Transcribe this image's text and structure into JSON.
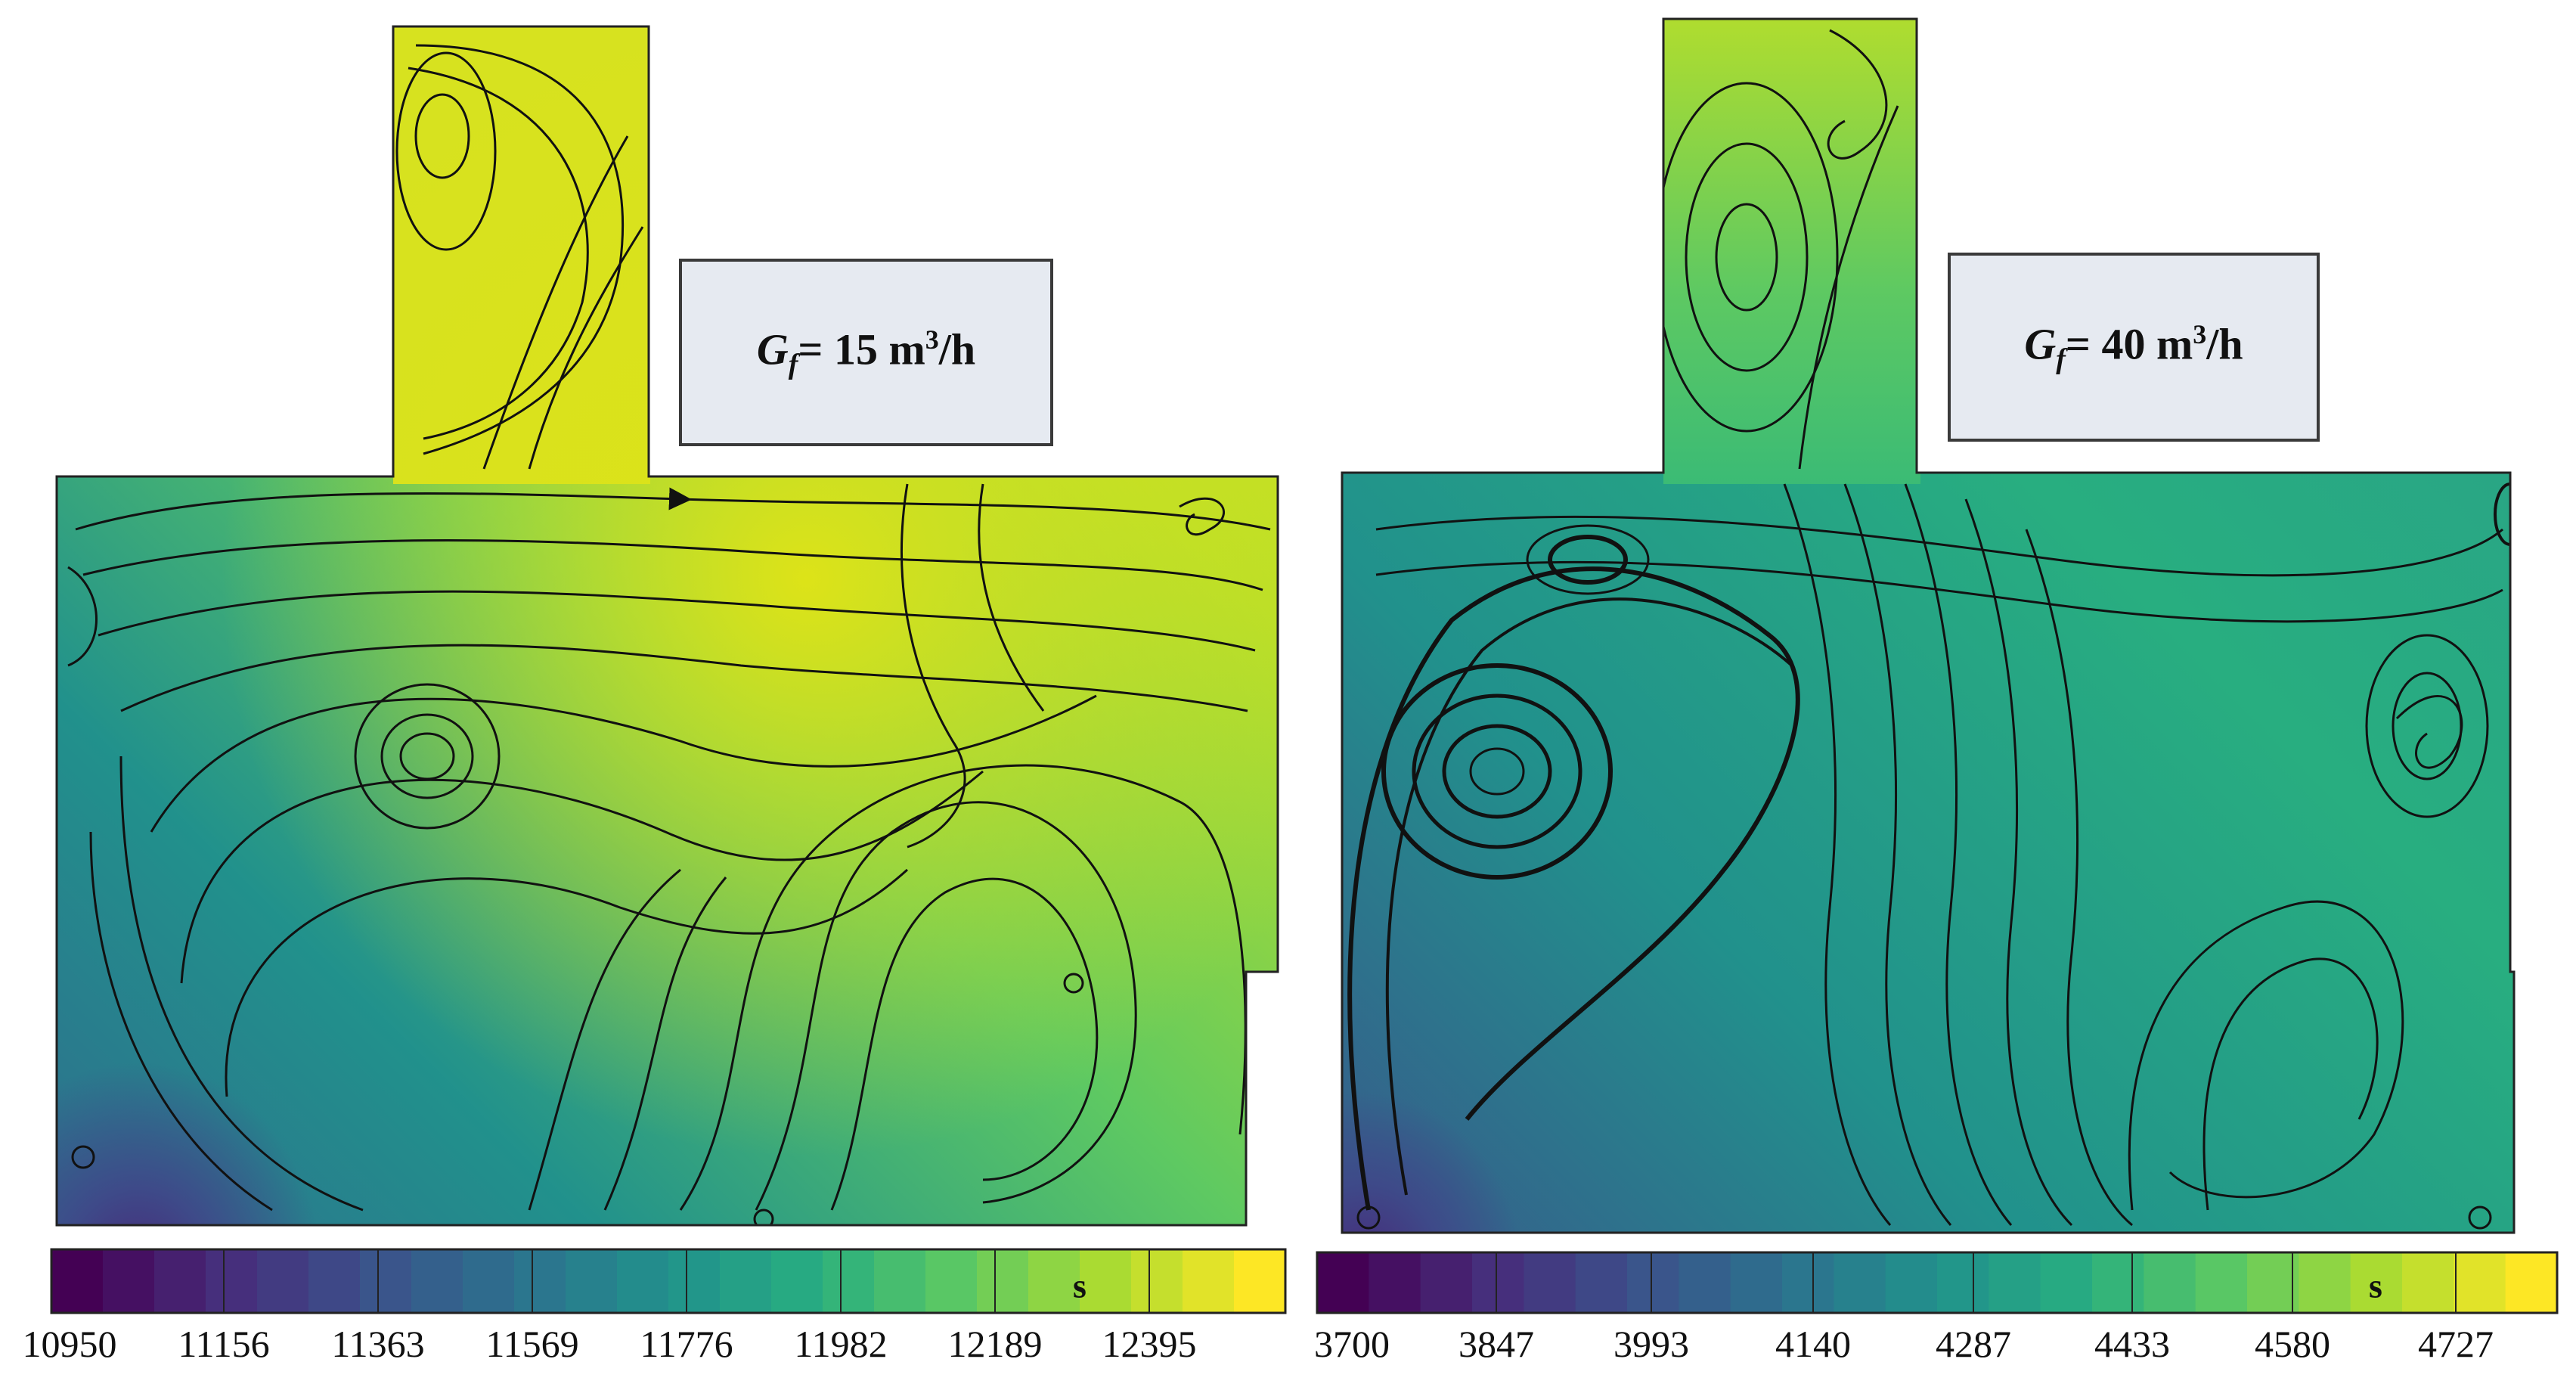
{
  "panels": [
    {
      "caption": {
        "symbol": "G",
        "subscript": "f",
        "value": "= 15 m",
        "power": "3",
        "per": "/h"
      },
      "colorbar": {
        "unit": "s",
        "ticks": [
          "10950",
          "11156",
          "11363",
          "11569",
          "11776",
          "11982",
          "12189",
          "12395"
        ],
        "colors": [
          "#440154",
          "#472d7b",
          "#3b528b",
          "#2c728e",
          "#21918c",
          "#28ae80",
          "#5ec962",
          "#addc30",
          "#fde725"
        ]
      }
    },
    {
      "caption": {
        "symbol": "G",
        "subscript": "f",
        "value": "= 40 m",
        "power": "3",
        "per": "/h"
      },
      "colorbar": {
        "unit": "s",
        "ticks": [
          "3700",
          "3847",
          "3993",
          "4140",
          "4287",
          "4433",
          "4580",
          "4727"
        ],
        "colors": [
          "#440154",
          "#472d7b",
          "#3b528b",
          "#2c728e",
          "#21918c",
          "#28ae80",
          "#5ec962",
          "#addc30",
          "#fde725"
        ]
      }
    }
  ]
}
